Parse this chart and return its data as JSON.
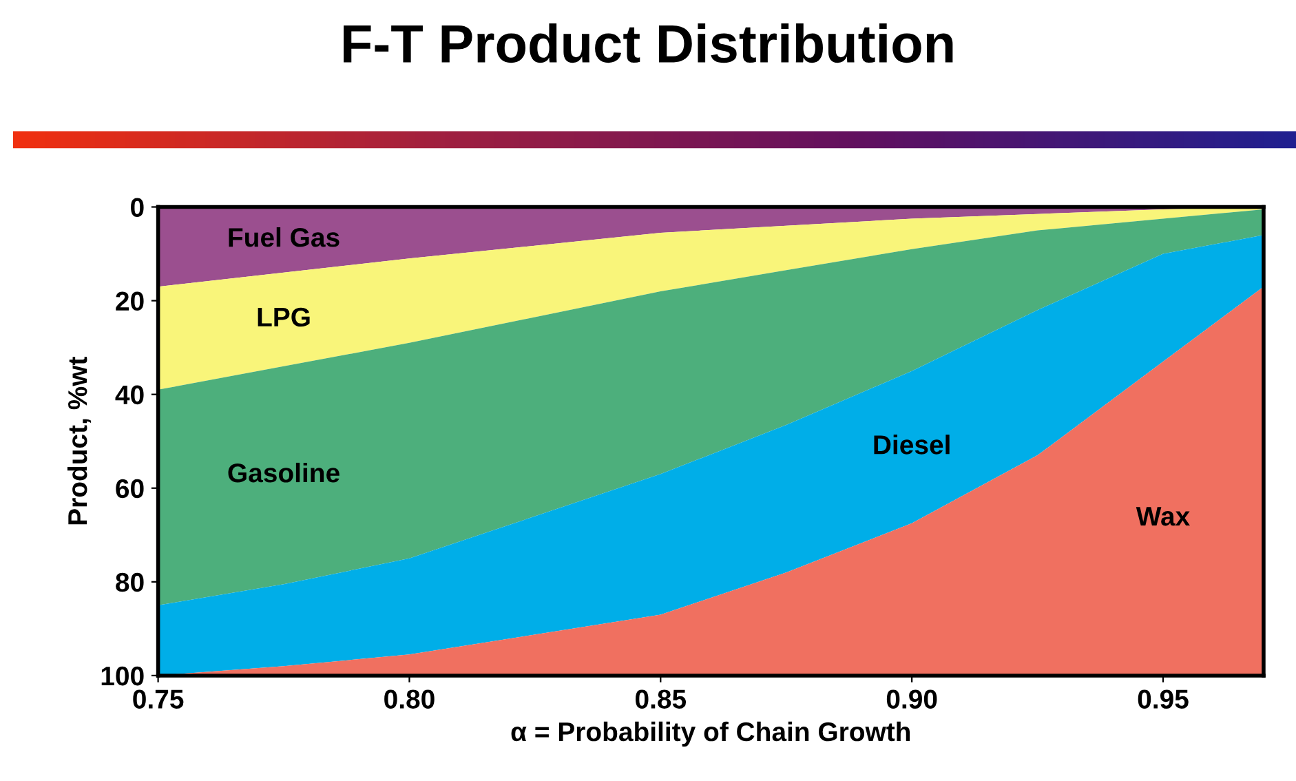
{
  "chart_data": {
    "type": "area",
    "stacked": true,
    "title": "F-T Product Distribution",
    "xlabel": "α = Probability of Chain Growth",
    "ylabel": "Product, %wt",
    "x": [
      0.75,
      0.775,
      0.8,
      0.85,
      0.875,
      0.9,
      0.925,
      0.95,
      0.97
    ],
    "series": [
      {
        "name": "Fuel Gas",
        "color": "#9b4f8f",
        "values": [
          17,
          14,
          11,
          5.5,
          4,
          2.5,
          1.5,
          0.5,
          0
        ]
      },
      {
        "name": "LPG",
        "color": "#f9f57a",
        "values": [
          22,
          20,
          18,
          12.5,
          9.5,
          6.5,
          3.5,
          2,
          0.5
        ]
      },
      {
        "name": "Gasoline",
        "color": "#4daf7c",
        "values": [
          46,
          46.5,
          46,
          39,
          33,
          26,
          17,
          7.5,
          5.5
        ]
      },
      {
        "name": "Diesel",
        "color": "#00aee8",
        "values": [
          15,
          17.5,
          20.5,
          30,
          31.5,
          32.5,
          31,
          23,
          11
        ]
      },
      {
        "name": "Wax",
        "color": "#f07060",
        "values": [
          0,
          2,
          4.5,
          13,
          22,
          32.5,
          47,
          67,
          83
        ]
      }
    ],
    "xlim": [
      0.75,
      0.97
    ],
    "xticks": [
      {
        "value": 0.75,
        "label": "0.75"
      },
      {
        "value": 0.8,
        "label": "0.80"
      },
      {
        "value": 0.85,
        "label": "0.85"
      },
      {
        "value": 0.9,
        "label": "0.90"
      },
      {
        "value": 0.95,
        "label": "0.95"
      }
    ],
    "ylim": [
      100,
      0
    ],
    "yticks": [
      0,
      20,
      40,
      60,
      80,
      100
    ],
    "grid": false
  }
}
